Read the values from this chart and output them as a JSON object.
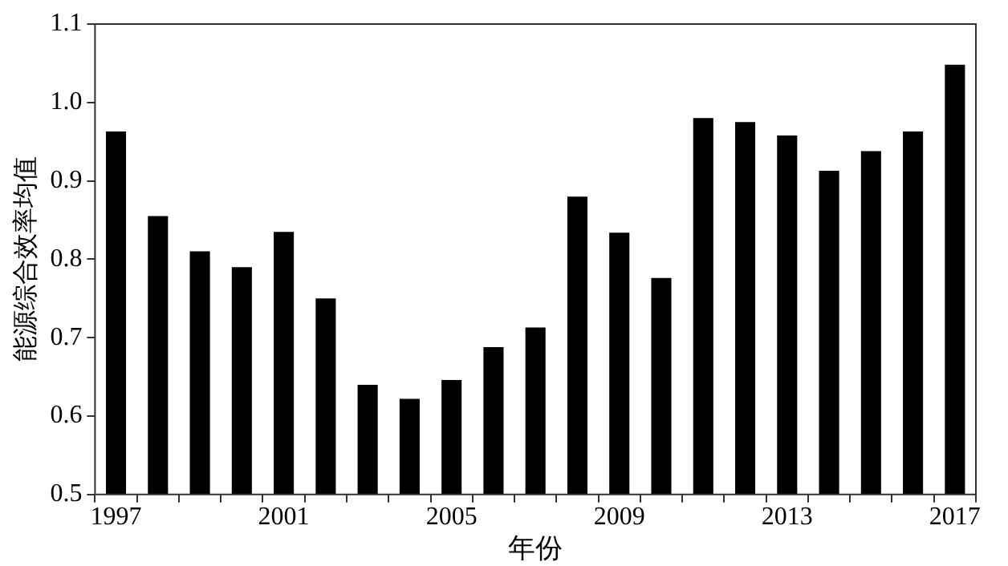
{
  "chart_data": {
    "type": "bar",
    "xlabel": "年份",
    "ylabel": "能源综合效率均值",
    "categories": [
      "1997",
      null,
      null,
      null,
      "2001",
      null,
      null,
      null,
      "2005",
      null,
      null,
      null,
      "2009",
      null,
      null,
      null,
      "2013",
      null,
      null,
      null,
      "2017"
    ],
    "values": [
      0.963,
      0.855,
      0.81,
      0.79,
      0.835,
      0.75,
      0.64,
      0.622,
      0.646,
      0.688,
      0.713,
      0.88,
      0.834,
      0.776,
      0.98,
      0.975,
      0.958,
      0.913,
      0.938,
      0.963,
      1.048
    ],
    "color": "#000000",
    "ylim": [
      0.5,
      1.1
    ],
    "yticks": [
      0.5,
      0.6,
      0.7,
      0.8,
      0.9,
      {
        "value": 1,
        "label": "1.0"
      },
      1.1
    ],
    "grid": false,
    "legend": false
  }
}
